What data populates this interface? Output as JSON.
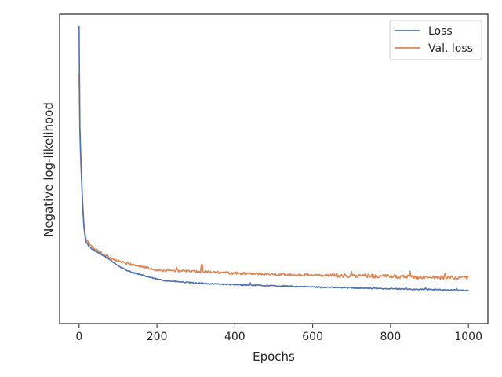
{
  "chart_data": {
    "type": "line",
    "title": "",
    "xlabel": "Epochs",
    "ylabel": "Negative log-likelihood",
    "xlim": [
      -50,
      1050
    ],
    "ylim": [
      0,
      1
    ],
    "xticks": [
      "0",
      "200",
      "400",
      "600",
      "800",
      "1000"
    ],
    "xtick_values": [
      0,
      200,
      400,
      600,
      800,
      1000
    ],
    "y_tick_labels_shown": false,
    "grid": false,
    "legend_position": "top-right",
    "x": [
      0,
      2,
      4,
      6,
      8,
      10,
      12,
      15,
      18,
      20,
      25,
      30,
      40,
      50,
      60,
      70,
      80,
      90,
      100,
      110,
      120,
      140,
      160,
      180,
      200,
      220,
      250,
      300,
      350,
      400,
      450,
      500,
      550,
      600,
      650,
      700,
      750,
      800,
      850,
      900,
      950,
      1000
    ],
    "series": [
      {
        "name": "Loss",
        "color": "#4c72b0",
        "values": [
          1.0,
          0.64,
          0.55,
          0.47,
          0.4,
          0.34,
          0.29,
          0.25,
          0.23,
          0.225,
          0.215,
          0.208,
          0.198,
          0.19,
          0.182,
          0.174,
          0.166,
          0.155,
          0.145,
          0.137,
          0.13,
          0.12,
          0.112,
          0.104,
          0.097,
          0.092,
          0.088,
          0.083,
          0.08,
          0.077,
          0.075,
          0.073,
          0.071,
          0.069,
          0.067,
          0.066,
          0.064,
          0.063,
          0.061,
          0.06,
          0.058,
          0.057
        ]
      },
      {
        "name": "Val. loss",
        "color": "#dd8452",
        "values": [
          0.83,
          0.62,
          0.53,
          0.46,
          0.4,
          0.35,
          0.3,
          0.26,
          0.24,
          0.235,
          0.225,
          0.215,
          0.205,
          0.197,
          0.188,
          0.18,
          0.174,
          0.168,
          0.162,
          0.157,
          0.154,
          0.148,
          0.142,
          0.135,
          0.13,
          0.128,
          0.127,
          0.124,
          0.121,
          0.118,
          0.116,
          0.114,
          0.112,
          0.111,
          0.11,
          0.109,
          0.108,
          0.107,
          0.104,
          0.103,
          0.102,
          0.101
        ]
      }
    ]
  }
}
